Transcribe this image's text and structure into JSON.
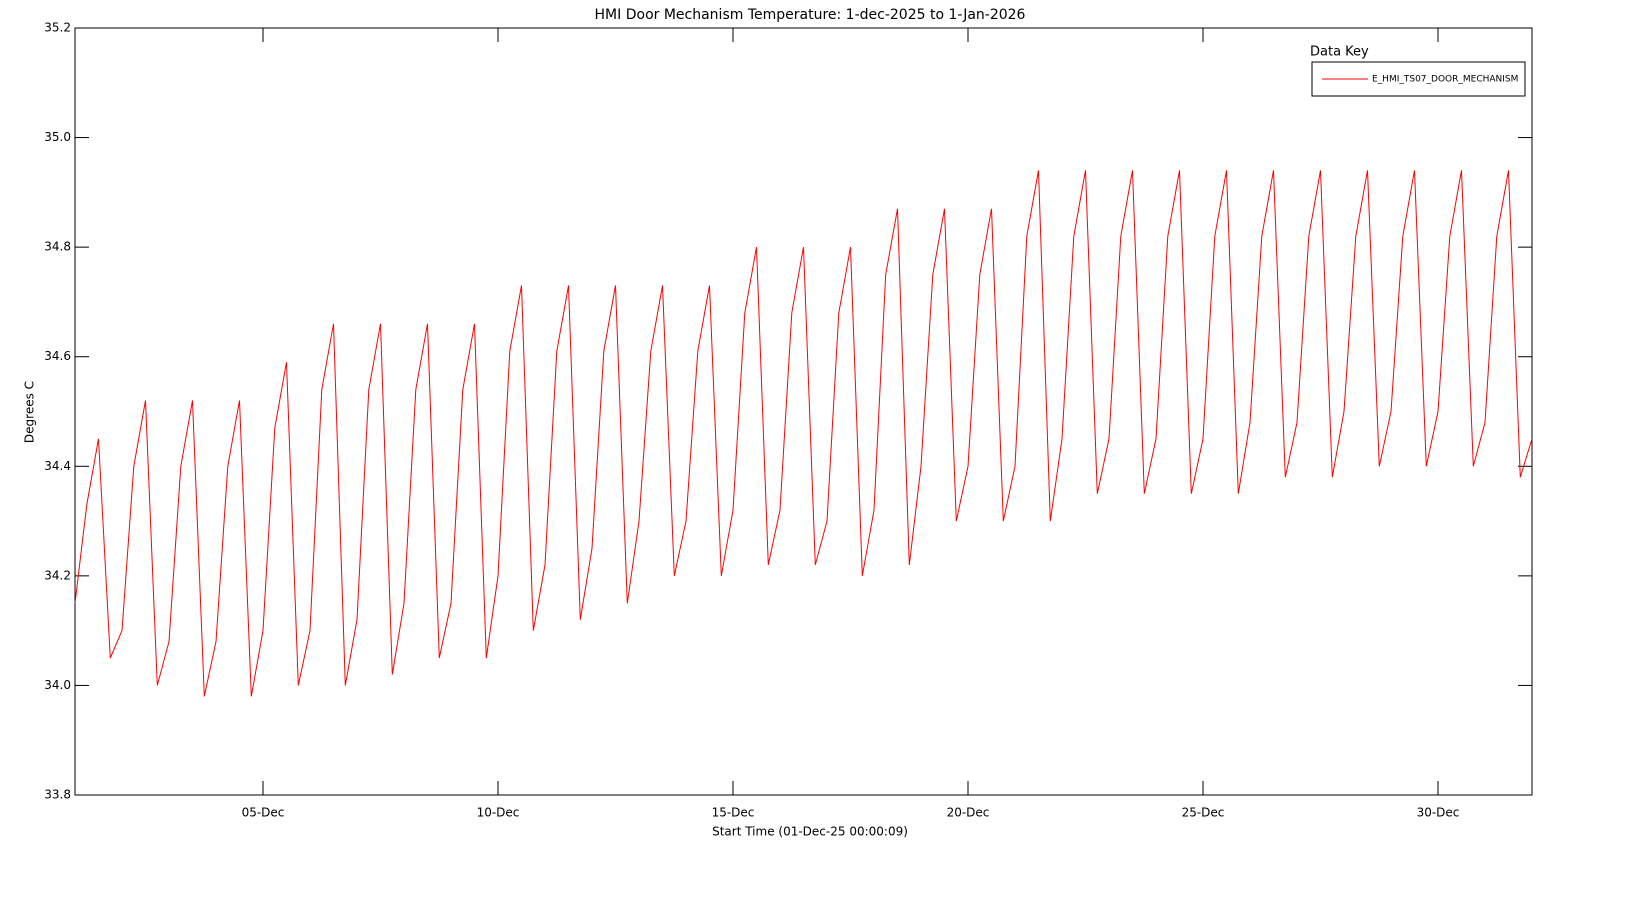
{
  "chart_data": {
    "type": "line",
    "title": "HMI Door Mechanism Temperature: 1-dec-2025 to 1-Jan-2026",
    "x_label": "Start Time (01-Dec-25 00:00:09)",
    "y_label": "Degrees C",
    "legend_title": "Data Key",
    "legend_position": "upper right",
    "xlim": [
      1,
      32
    ],
    "xticks": [
      {
        "value": 5,
        "label": "05-Dec"
      },
      {
        "value": 10,
        "label": "10-Dec"
      },
      {
        "value": 15,
        "label": "15-Dec"
      },
      {
        "value": 20,
        "label": "20-Dec"
      },
      {
        "value": 25,
        "label": "25-Dec"
      },
      {
        "value": 30,
        "label": "30-Dec"
      }
    ],
    "ylim": [
      33.8,
      35.2
    ],
    "yticks": [
      33.8,
      {
        "value": 34.0,
        "label": "34.0"
      },
      34.2,
      34.4,
      34.6,
      34.8,
      {
        "value": 35.0,
        "label": "35.0"
      },
      35.2
    ],
    "x": [
      1,
      1.25,
      1.5,
      1.75,
      2,
      2.25,
      2.5,
      2.75,
      3,
      3.25,
      3.5,
      3.75,
      4,
      4.25,
      4.5,
      4.75,
      5,
      5.25,
      5.5,
      5.75,
      6,
      6.25,
      6.5,
      6.75,
      7,
      7.25,
      7.5,
      7.75,
      8,
      8.25,
      8.5,
      8.75,
      9,
      9.25,
      9.5,
      9.75,
      10,
      10.25,
      10.5,
      10.75,
      11,
      11.25,
      11.5,
      11.75,
      12,
      12.25,
      12.5,
      12.75,
      13,
      13.25,
      13.5,
      13.75,
      14,
      14.25,
      14.5,
      14.75,
      15,
      15.25,
      15.5,
      15.75,
      16,
      16.25,
      16.5,
      16.75,
      17,
      17.25,
      17.5,
      17.75,
      18,
      18.25,
      18.5,
      18.75,
      19,
      19.25,
      19.5,
      19.75,
      20,
      20.25,
      20.5,
      20.75,
      21,
      21.25,
      21.5,
      21.75,
      22,
      22.25,
      22.5,
      22.75,
      23,
      23.25,
      23.5,
      23.75,
      24,
      24.25,
      24.5,
      24.75,
      25,
      25.25,
      25.5,
      25.75,
      26,
      26.25,
      26.5,
      26.75,
      27,
      27.25,
      27.5,
      27.75,
      28,
      28.25,
      28.5,
      28.75,
      29,
      29.25,
      29.5,
      29.75,
      30,
      30.25,
      30.5,
      30.75,
      31,
      31.25,
      31.5,
      31.75,
      32
    ],
    "series": [
      {
        "name": "E_HMI_TS07_DOOR_MECHANISM",
        "color": "#ff0000",
        "values": [
          34.15,
          34.33,
          34.45,
          34.05,
          34.1,
          34.4,
          34.52,
          34.0,
          34.08,
          34.4,
          34.52,
          33.98,
          34.08,
          34.4,
          34.52,
          33.98,
          34.1,
          34.47,
          34.59,
          34.0,
          34.1,
          34.54,
          34.66,
          34.0,
          34.12,
          34.54,
          34.66,
          34.02,
          34.15,
          34.54,
          34.66,
          34.05,
          34.15,
          34.54,
          34.66,
          34.05,
          34.2,
          34.61,
          34.73,
          34.1,
          34.22,
          34.61,
          34.73,
          34.12,
          34.25,
          34.61,
          34.73,
          34.15,
          34.3,
          34.61,
          34.73,
          34.2,
          34.3,
          34.61,
          34.73,
          34.2,
          34.32,
          34.68,
          34.8,
          34.22,
          34.32,
          34.68,
          34.8,
          34.22,
          34.3,
          34.68,
          34.8,
          34.2,
          34.32,
          34.75,
          34.87,
          34.22,
          34.4,
          34.75,
          34.87,
          34.3,
          34.4,
          34.75,
          34.87,
          34.3,
          34.4,
          34.82,
          34.94,
          34.3,
          34.45,
          34.82,
          34.94,
          34.35,
          34.45,
          34.82,
          34.94,
          34.35,
          34.45,
          34.82,
          34.94,
          34.35,
          34.45,
          34.82,
          34.94,
          34.35,
          34.48,
          34.82,
          34.94,
          34.38,
          34.48,
          34.82,
          34.94,
          34.38,
          34.5,
          34.82,
          34.94,
          34.4,
          34.5,
          34.82,
          34.94,
          34.4,
          34.5,
          34.82,
          34.94,
          34.4,
          34.48,
          34.82,
          34.94,
          34.38,
          34.45
        ]
      }
    ]
  }
}
